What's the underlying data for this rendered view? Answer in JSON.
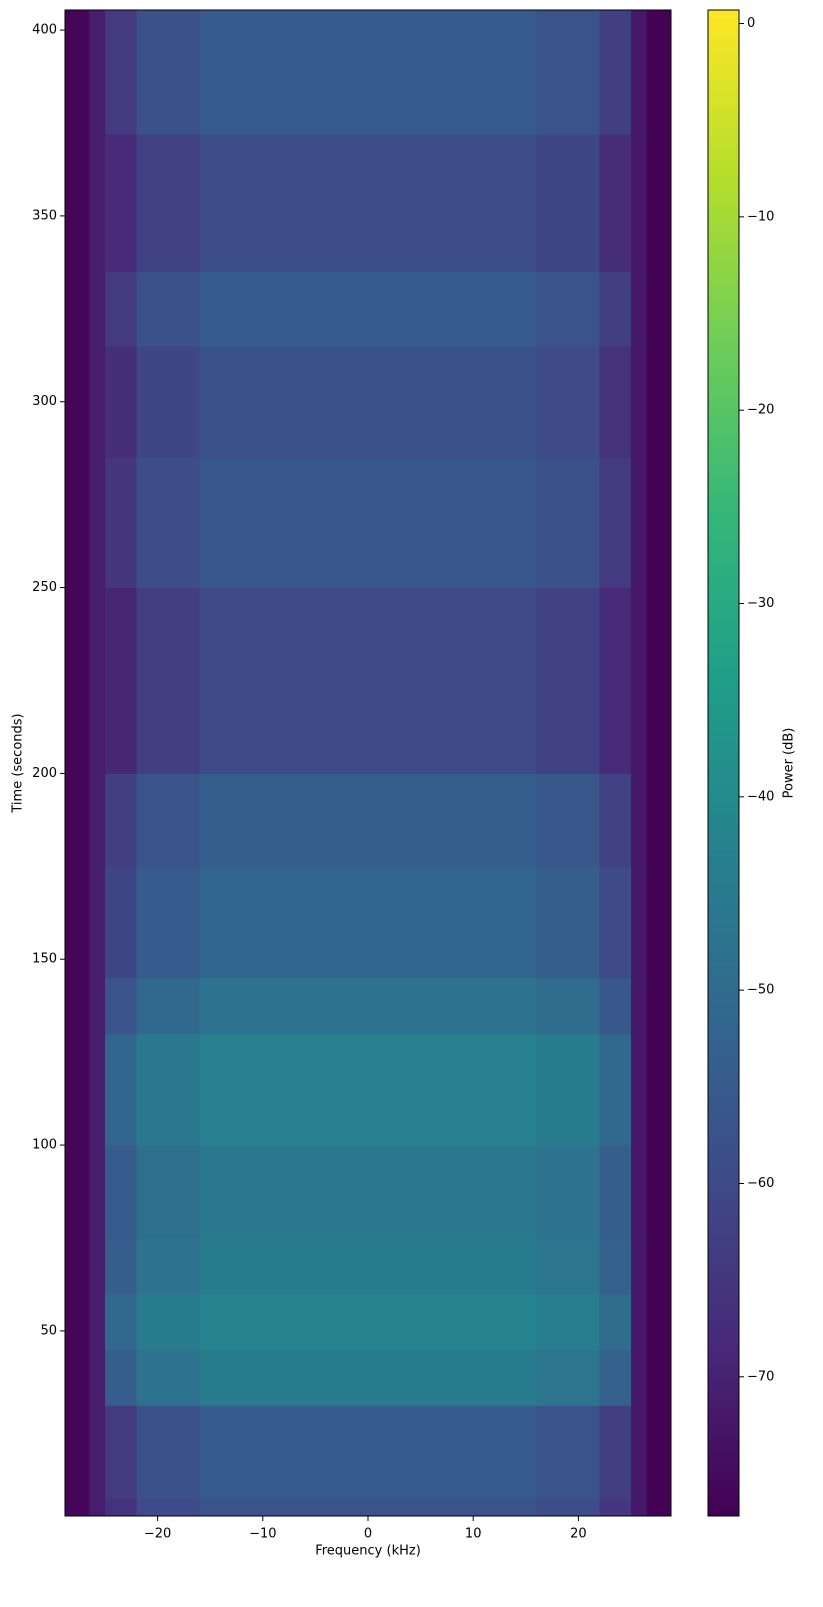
{
  "chart_data": {
    "type": "heatmap",
    "xlabel": "Frequency (kHz)",
    "ylabel": "Time (seconds)",
    "colorbar_label": "Power (dB)",
    "colormap": "viridis",
    "x": [
      -28.8,
      -26.5,
      -25,
      -22,
      -16,
      16,
      22,
      25,
      26.5,
      28.8
    ],
    "y": [
      0.2,
      5,
      30,
      45,
      60,
      75,
      100,
      130,
      145,
      175,
      200,
      250,
      285,
      315,
      335,
      372,
      405.4
    ],
    "z": [
      [
        -76,
        -71,
        -66,
        -60,
        -57,
        -59,
        -65,
        -72,
        -77
      ],
      [
        -76,
        -71,
        -64,
        -58,
        -55,
        -57,
        -63,
        -72,
        -77
      ],
      [
        -76,
        -71,
        -54,
        -48,
        -45,
        -47,
        -53,
        -72,
        -77
      ],
      [
        -76,
        -71,
        -51,
        -45,
        -42,
        -44,
        -50,
        -72,
        -77
      ],
      [
        -76,
        -71,
        -54,
        -48,
        -45,
        -47,
        -53,
        -72,
        -77
      ],
      [
        -76,
        -71,
        -55,
        -49,
        -46,
        -48,
        -54,
        -72,
        -77
      ],
      [
        -76,
        -71,
        -52,
        -46,
        -43,
        -45,
        -51,
        -72,
        -77
      ],
      [
        -76,
        -71,
        -57,
        -51,
        -48,
        -50,
        -56,
        -72,
        -77
      ],
      [
        -76,
        -71,
        -61,
        -55,
        -52,
        -54,
        -60,
        -72,
        -77
      ],
      [
        -76,
        -71,
        -63,
        -57,
        -54,
        -56,
        -62,
        -72,
        -77
      ],
      [
        -76,
        -71,
        -69,
        -63,
        -60,
        -62,
        -68,
        -72,
        -77
      ],
      [
        -76,
        -71,
        -65,
        -59,
        -56,
        -58,
        -64,
        -72,
        -77
      ],
      [
        -76,
        -71,
        -67,
        -61,
        -58,
        -60,
        -66,
        -72,
        -77
      ],
      [
        -76,
        -71,
        -64,
        -58,
        -55,
        -57,
        -63,
        -72,
        -77
      ],
      [
        -76,
        -71,
        -68,
        -62,
        -59,
        -61,
        -67,
        -72,
        -77
      ],
      [
        -76,
        -71,
        -64,
        -58,
        -55,
        -57,
        -63,
        -72,
        -77
      ]
    ],
    "xlim": [
      -28.8,
      28.8
    ],
    "ylim": [
      0.2,
      405.4
    ],
    "zlim": [
      -77.2,
      0.7
    ],
    "xticks": [
      {
        "value": -20,
        "label": "−20"
      },
      {
        "value": -10,
        "label": "−10"
      },
      0,
      10,
      20
    ],
    "yticks": [
      50,
      100,
      150,
      200,
      250,
      300,
      350,
      400
    ],
    "zticks": [
      0,
      {
        "value": -10,
        "label": "−10"
      },
      {
        "value": -20,
        "label": "−20"
      },
      {
        "value": -30,
        "label": "−30"
      },
      {
        "value": -40,
        "label": "−40"
      },
      {
        "value": -50,
        "label": "−50"
      },
      {
        "value": -60,
        "label": "−60"
      },
      {
        "value": -70,
        "label": "−70"
      }
    ]
  }
}
